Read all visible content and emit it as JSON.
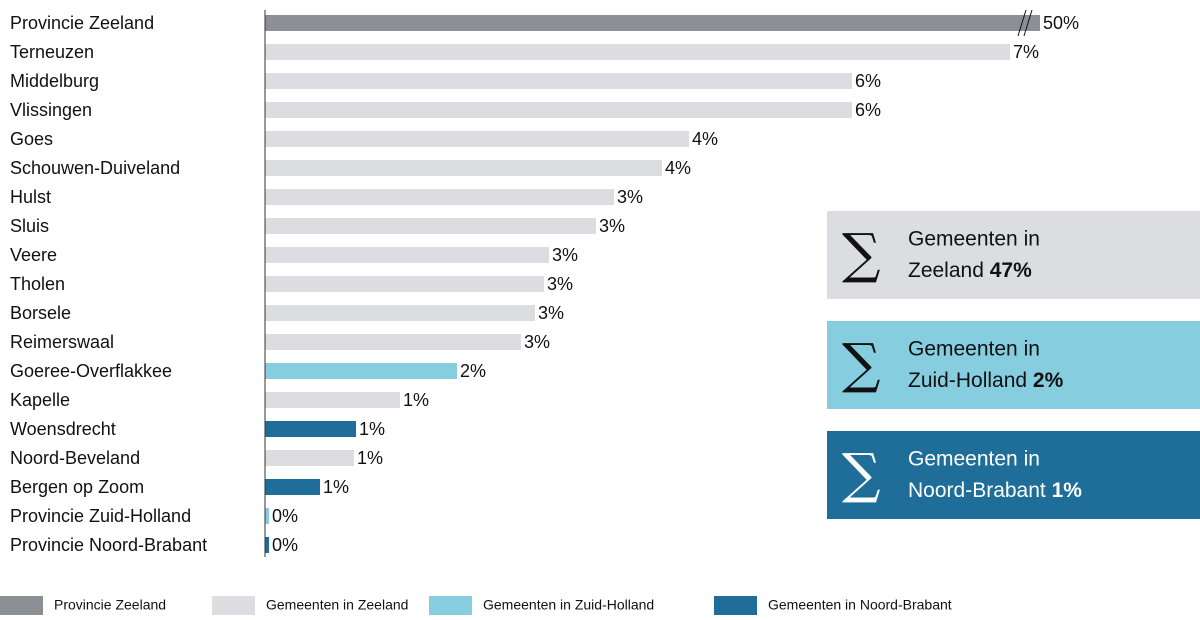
{
  "chart_data": {
    "type": "bar",
    "orientation": "horizontal",
    "categories": [
      "Provincie Zeeland",
      "Terneuzen",
      "Middelburg",
      "Vlissingen",
      "Goes",
      "Schouwen-Duiveland",
      "Hulst",
      "Sluis",
      "Veere",
      "Tholen",
      "Borsele",
      "Reimerswaal",
      "Goeree-Overflakkee",
      "Kapelle",
      "Woensdrecht",
      "Noord-Beveland",
      "Bergen op Zoom",
      "Provincie Zuid-Holland",
      "Provincie Noord-Brabant"
    ],
    "values": [
      50,
      7.45,
      5.87,
      5.87,
      4.24,
      3.97,
      3.49,
      3.31,
      2.84,
      2.79,
      2.7,
      2.56,
      1.92,
      1.35,
      0.91,
      0.89,
      0.55,
      0.04,
      0.04
    ],
    "value_labels": [
      "50%",
      "7%",
      "6%",
      "6%",
      "4%",
      "4%",
      "3%",
      "3%",
      "3%",
      "3%",
      "3%",
      "3%",
      "2%",
      "1%",
      "1%",
      "1%",
      "1%",
      "0%",
      "0%"
    ],
    "colors": [
      "#8c8f94",
      "#dcdde0",
      "#dcdde0",
      "#dcdde0",
      "#dcdde0",
      "#dcdde0",
      "#dcdde0",
      "#dcdde0",
      "#dcdde0",
      "#dcdde0",
      "#dcdde0",
      "#dcdde0",
      "#86cde0",
      "#dcdde0",
      "#1e6e99",
      "#dcdde0",
      "#1e6e99",
      "#86cde0",
      "#1e6e99"
    ],
    "xlim": [
      0,
      7.75
    ],
    "broken_axis": true,
    "legend": [
      {
        "name": "Provincie Zeeland",
        "color": "#8c8f94"
      },
      {
        "name": "Gemeenten in Zeeland",
        "color": "#dcdde0"
      },
      {
        "name": "Gemeenten in Zuid-Holland",
        "color": "#86cde0"
      },
      {
        "name": "Gemeenten in Noord-Brabant",
        "color": "#1e6e99"
      }
    ],
    "summaries": [
      {
        "line1": "Gemeenten in",
        "line2": "Zeeland",
        "value": 47,
        "value_label": "47%",
        "color": "#dcdde0",
        "text_color": "#111111"
      },
      {
        "line1": "Gemeenten in",
        "line2": "Zuid-Holland",
        "value": 2,
        "value_label": "2%",
        "color": "#86cde0",
        "text_color": "#111111"
      },
      {
        "line1": "Gemeenten in",
        "line2": "Noord-Brabant",
        "value": 1,
        "value_label": "1%",
        "color": "#1e6e99",
        "text_color": "#ffffff"
      }
    ]
  }
}
